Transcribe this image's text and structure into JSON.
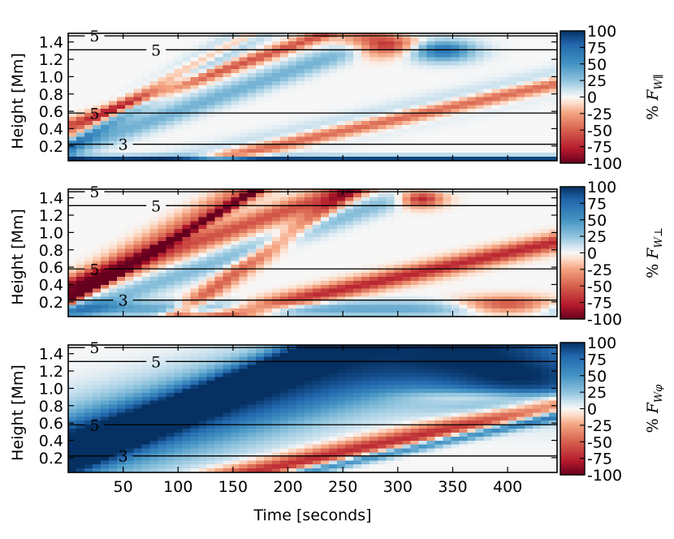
{
  "chart_data": {
    "type": "heatmap",
    "x_label": "Time [seconds]",
    "x_range": [
      0,
      445
    ],
    "x_ticks": [
      50,
      100,
      150,
      200,
      250,
      300,
      350,
      400
    ],
    "y_range": [
      0.03,
      1.5
    ],
    "colorbar_range": [
      -100,
      100
    ],
    "colorbar_ticks": [
      100,
      75,
      50,
      25,
      0,
      -25,
      -50,
      -75,
      -100
    ],
    "colormap": {
      "low": "#67001f",
      "mid": "#f7f7f7",
      "high": "#053061"
    },
    "panels": [
      {
        "name": "parallel",
        "y_label": "Height [Mm]",
        "y_ticks": [
          0.2,
          0.4,
          0.6,
          0.8,
          1.0,
          1.2,
          1.4
        ],
        "colorbar_label": "% F_W∥",
        "colorbar_prefix": "%",
        "colorbar_symbol": "F",
        "colorbar_subscript": "W∥",
        "contours": [
          {
            "level": "5",
            "height": 1.31,
            "label_x": 80
          },
          {
            "level": "5",
            "height": 0.58,
            "label_x": 24
          },
          {
            "level": "3",
            "height": 0.22,
            "label_x": 50
          },
          {
            "level": "5",
            "height": 1.47,
            "label_x": 24
          }
        ],
        "features": [
          {
            "kind": "front",
            "t0": 0,
            "h0": 0.3,
            "slope": 0.0072,
            "width": 0.09,
            "value": -90
          },
          {
            "kind": "front",
            "t0": 80,
            "h0": 0.85,
            "slope": 0.0075,
            "width": 0.12,
            "value": 80
          },
          {
            "kind": "front",
            "t0": 80,
            "h0": 0.8,
            "slope": 0.0045,
            "width": 0.07,
            "value": -55
          },
          {
            "kind": "front",
            "t0": 100,
            "h0": 0.6,
            "slope": 0.0045,
            "width": 0.12,
            "value": 35
          },
          {
            "kind": "front",
            "t0": 150,
            "h0": 0.12,
            "slope": 0.0028,
            "width": 0.14,
            "value": 25
          },
          {
            "kind": "front",
            "t0": 170,
            "h0": 0.15,
            "slope": 0.0028,
            "width": 0.08,
            "value": -70
          },
          {
            "kind": "blob",
            "t": 285,
            "h": 1.4,
            "rt": 30,
            "rh": 0.14,
            "value": -95
          },
          {
            "kind": "blob",
            "t": 340,
            "h": 1.3,
            "rt": 30,
            "rh": 0.12,
            "value": 70
          },
          {
            "kind": "band",
            "h": 0.05,
            "width": 0.035,
            "value": 90
          }
        ]
      },
      {
        "name": "perpendicular",
        "y_label": "Height [Mm]",
        "y_ticks": [
          0.2,
          0.4,
          0.6,
          0.8,
          1.0,
          1.2,
          1.4
        ],
        "colorbar_label": "% F_W⊥",
        "colorbar_prefix": "%",
        "colorbar_symbol": "F",
        "colorbar_subscript": "W⊥",
        "contours": [
          {
            "level": "5",
            "height": 1.31,
            "label_x": 80
          },
          {
            "level": "5",
            "height": 0.58,
            "label_x": 24
          },
          {
            "level": "3",
            "height": 0.22,
            "label_x": 50
          },
          {
            "level": "5",
            "height": 1.47,
            "label_x": 24
          }
        ],
        "features": [
          {
            "kind": "front",
            "t0": 0,
            "h0": 0.32,
            "slope": 0.0072,
            "width": 0.16,
            "value": -45
          },
          {
            "kind": "front",
            "t0": 80,
            "h0": 0.8,
            "slope": 0.0075,
            "width": 0.06,
            "value": -80
          },
          {
            "kind": "front",
            "t0": 80,
            "h0": 0.72,
            "slope": 0.0045,
            "width": 0.12,
            "value": -55
          },
          {
            "kind": "front",
            "t0": 100,
            "h0": 0.5,
            "slope": 0.0045,
            "width": 0.12,
            "value": 30
          },
          {
            "kind": "front",
            "t0": 170,
            "h0": 0.12,
            "slope": 0.0028,
            "width": 0.1,
            "value": -70
          },
          {
            "kind": "front",
            "t0": 260,
            "h0": 1.5,
            "slope": 0.009,
            "width": 0.12,
            "value": -50
          },
          {
            "kind": "blob",
            "t": 320,
            "h": 1.4,
            "rt": 20,
            "rh": 0.1,
            "value": -85
          },
          {
            "kind": "blob",
            "t": 400,
            "h": 0.15,
            "rt": 45,
            "rh": 0.1,
            "value": -85
          },
          {
            "kind": "band",
            "h": 0.12,
            "width": 0.09,
            "value": 40
          }
        ]
      },
      {
        "name": "azimuthal",
        "y_label": "Height [Mm]",
        "y_ticks": [
          0.2,
          0.4,
          0.6,
          0.8,
          1.0,
          1.2,
          1.4
        ],
        "colorbar_label": "% F_Wφ",
        "colorbar_prefix": "%",
        "colorbar_symbol": "F",
        "colorbar_subscript": "Wφ",
        "contours": [
          {
            "level": "5",
            "height": 1.31,
            "label_x": 80
          },
          {
            "level": "5",
            "height": 0.58,
            "label_x": 24
          },
          {
            "level": "3",
            "height": 0.22,
            "label_x": 50
          },
          {
            "level": "5",
            "height": 1.47,
            "label_x": 24
          }
        ],
        "features": [
          {
            "kind": "front",
            "t0": 0,
            "h0": 0.3,
            "slope": 0.0035,
            "width": 0.45,
            "value": 85
          },
          {
            "kind": "front",
            "t0": 80,
            "h0": 0.7,
            "slope": 0.0045,
            "width": 0.22,
            "value": 40
          },
          {
            "kind": "front",
            "t0": 120,
            "h0": 0.85,
            "slope": 0.006,
            "width": 0.18,
            "value": 55
          },
          {
            "kind": "front",
            "t0": 200,
            "h0": 0.12,
            "slope": 0.0028,
            "width": 0.12,
            "value": -70
          },
          {
            "kind": "front",
            "t0": 220,
            "h0": 0.05,
            "slope": 0.0028,
            "width": 0.06,
            "value": 70
          },
          {
            "kind": "blob",
            "t": 420,
            "h": 1.1,
            "rt": 90,
            "rh": 0.35,
            "value": 90
          },
          {
            "kind": "blob",
            "t": 380,
            "h": 0.9,
            "rt": 70,
            "rh": 0.08,
            "value": -40
          }
        ]
      }
    ]
  }
}
